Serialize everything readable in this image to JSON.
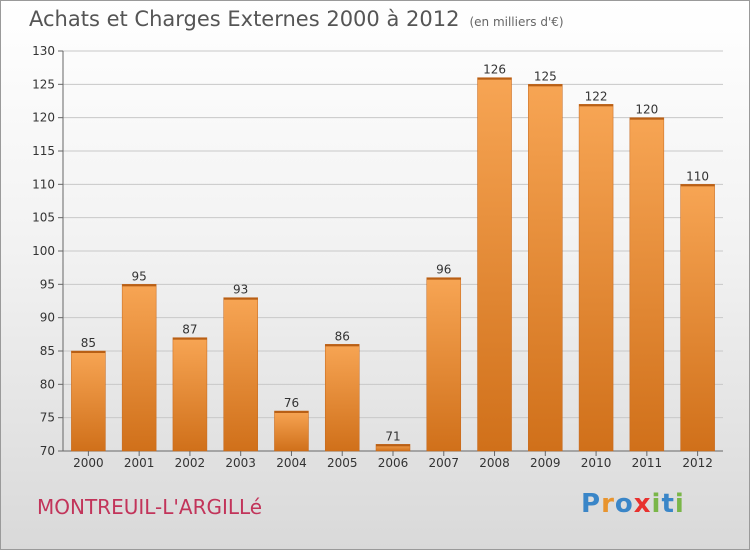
{
  "title": "Achats et Charges Externes 2000 à 2012",
  "subtitle": "(en milliers d'€)",
  "place": "MONTREUIL-L'ARGILLé",
  "logo": {
    "letters": [
      "P",
      "r",
      "o",
      "x",
      "i",
      "t",
      "i"
    ],
    "colors": [
      "#3a86c8",
      "#e8942e",
      "#3a86c8",
      "#e8312e",
      "#7ab648",
      "#3a86c8",
      "#7ab648"
    ]
  },
  "colors": {
    "bar_light": "#f7a554",
    "bar_dark": "#d0701a",
    "text": "#333333",
    "grid": "#c8c8c8",
    "title": "#555555",
    "place": "#c2345a"
  },
  "chart_data": {
    "type": "bar",
    "categories": [
      "2000",
      "2001",
      "2002",
      "2003",
      "2004",
      "2005",
      "2006",
      "2007",
      "2008",
      "2009",
      "2010",
      "2011",
      "2012"
    ],
    "values": [
      85,
      95,
      87,
      93,
      76,
      86,
      71,
      96,
      126,
      125,
      122,
      120,
      110
    ],
    "data_labels": [
      "85",
      "95",
      "87",
      "93",
      "76",
      "86",
      "71",
      "96",
      "126",
      "125",
      "122",
      "120",
      "110"
    ],
    "ylim": [
      70,
      130
    ],
    "yticks": [
      70,
      75,
      80,
      85,
      90,
      95,
      100,
      105,
      110,
      115,
      120,
      125,
      130
    ],
    "ytick_labels": [
      "70",
      "75",
      "80",
      "85",
      "90",
      "95",
      "100",
      "105",
      "110",
      "115",
      "120",
      "125",
      "130"
    ],
    "grid": true
  }
}
